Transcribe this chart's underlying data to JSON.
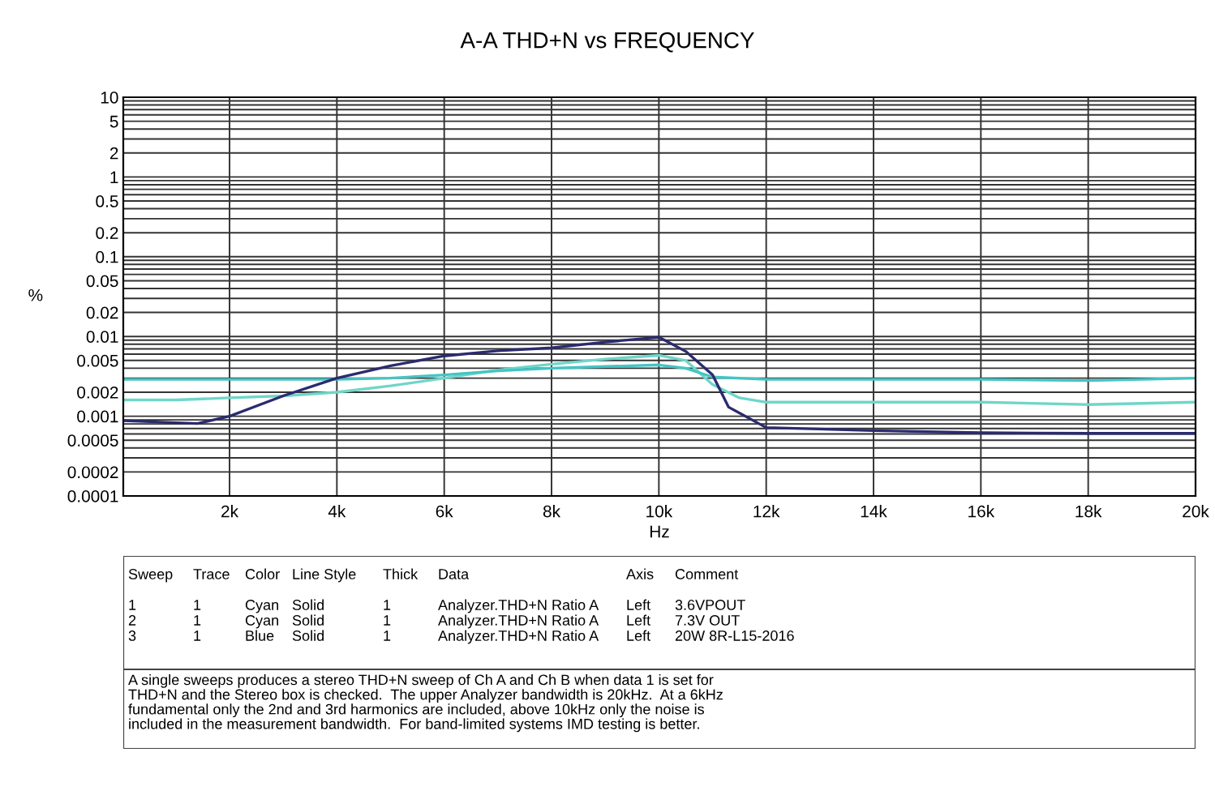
{
  "chart_data": {
    "type": "line",
    "title": "A-A THD+N vs FREQUENCY",
    "xlabel": "Hz",
    "ylabel": "%",
    "log": "y",
    "grid": true,
    "line_style": "solid",
    "marker": "none",
    "xlim": [
      20,
      20000
    ],
    "ylim": [
      0.0001,
      10
    ],
    "xticks": [
      {
        "value": 2000,
        "label": "2k"
      },
      {
        "value": 4000,
        "label": "4k"
      },
      {
        "value": 6000,
        "label": "6k"
      },
      {
        "value": 8000,
        "label": "8k"
      },
      {
        "value": 10000,
        "label": "10k"
      },
      {
        "value": 12000,
        "label": "12k"
      },
      {
        "value": 14000,
        "label": "14k"
      },
      {
        "value": 16000,
        "label": "16k"
      },
      {
        "value": 18000,
        "label": "18k"
      },
      {
        "value": 20000,
        "label": "20k"
      }
    ],
    "yticks": [
      0.0001,
      0.0002,
      {
        "value": 0.0003,
        "label": null
      },
      {
        "value": 0.0004,
        "label": null
      },
      0.0005,
      {
        "value": 0.0006,
        "label": null
      },
      {
        "value": 0.0007,
        "label": null
      },
      {
        "value": 0.0008,
        "label": null
      },
      {
        "value": 0.0009,
        "label": null
      },
      0.001,
      0.002,
      {
        "value": 0.003,
        "label": null
      },
      {
        "value": 0.004,
        "label": null
      },
      0.005,
      {
        "value": 0.006,
        "label": null
      },
      {
        "value": 0.007,
        "label": null
      },
      {
        "value": 0.008,
        "label": null
      },
      {
        "value": 0.009,
        "label": null
      },
      0.01,
      0.02,
      {
        "value": 0.03,
        "label": null
      },
      {
        "value": 0.04,
        "label": null
      },
      0.05,
      {
        "value": 0.06,
        "label": null
      },
      {
        "value": 0.07,
        "label": null
      },
      {
        "value": 0.08,
        "label": null
      },
      {
        "value": 0.09,
        "label": null
      },
      0.1,
      0.2,
      {
        "value": 0.3,
        "label": null
      },
      {
        "value": 0.4,
        "label": null
      },
      0.5,
      {
        "value": 0.6,
        "label": null
      },
      {
        "value": 0.7,
        "label": null
      },
      {
        "value": 0.8,
        "label": null
      },
      {
        "value": 0.9,
        "label": null
      },
      1,
      2,
      {
        "value": 3,
        "label": null
      },
      {
        "value": 4,
        "label": null
      },
      5,
      {
        "value": 6,
        "label": null
      },
      {
        "value": 7,
        "label": null
      },
      {
        "value": 8,
        "label": null
      },
      {
        "value": 9,
        "label": null
      },
      10
    ],
    "series": [
      {
        "color": "#6fd6c8",
        "x": [
          20,
          1000,
          2000,
          3000,
          4000,
          5000,
          6000,
          7000,
          8000,
          9000,
          10000,
          10500,
          11000,
          11500,
          12000,
          14000,
          16000,
          18000,
          20000
        ],
        "values": [
          0.0016,
          0.0016,
          0.0017,
          0.0018,
          0.002,
          0.0024,
          0.003,
          0.0038,
          0.0045,
          0.0052,
          0.0058,
          0.005,
          0.0025,
          0.0017,
          0.0015,
          0.0015,
          0.0015,
          0.0014,
          0.0015
        ]
      },
      {
        "color": "#45c4c4",
        "x": [
          20,
          2000,
          4000,
          5000,
          6000,
          7000,
          8000,
          9000,
          10000,
          10500,
          11000,
          12000,
          14000,
          16000,
          18000,
          20000
        ],
        "values": [
          0.0029,
          0.0029,
          0.0029,
          0.003,
          0.0033,
          0.0037,
          0.004,
          0.0042,
          0.0044,
          0.004,
          0.0031,
          0.0029,
          0.0029,
          0.0029,
          0.0028,
          0.003
        ]
      },
      {
        "color": "#2b2b70",
        "x": [
          20,
          1400,
          2000,
          3000,
          4000,
          5000,
          6000,
          7000,
          8000,
          9000,
          10000,
          10500,
          11000,
          11300,
          12000,
          14000,
          16000,
          18000,
          20000
        ],
        "values": [
          0.00088,
          0.00081,
          0.001,
          0.0018,
          0.003,
          0.0043,
          0.0057,
          0.0066,
          0.0072,
          0.0085,
          0.0098,
          0.0065,
          0.0033,
          0.0013,
          0.00072,
          0.00066,
          0.00062,
          0.00061,
          0.00061
        ]
      }
    ],
    "annotations": [
      "Sweep",
      "Trace",
      "Color",
      "Line Style",
      "Thick",
      "Data",
      "Axis",
      "Comment",
      "1",
      "1",
      "Cyan",
      "Solid",
      "1",
      "Analyzer.THD+N Ratio A",
      "Left",
      "3.6VPOUT",
      "2",
      "1",
      "Cyan",
      "Solid",
      "1",
      "Analyzer.THD+N Ratio A",
      "Left",
      "7.3V OUT",
      "3",
      "1",
      "Blue",
      "Solid",
      "1",
      "Analyzer.THD+N Ratio A",
      "Left",
      "20W 8R-L15-2016",
      "A single sweeps produces a stereo THD+N sweep of Ch A and Ch B when data 1 is set for\nTHD+N and the Stereo box is checked.  The upper Analyzer bandwidth is 20kHz.  At a 6kHz\nfundamental only the 2nd and 3rd harmonics are included, above 10kHz only the noise is\nincluded in the measurement bandwidth.  For band-limited systems IMD testing is better."
    ]
  }
}
